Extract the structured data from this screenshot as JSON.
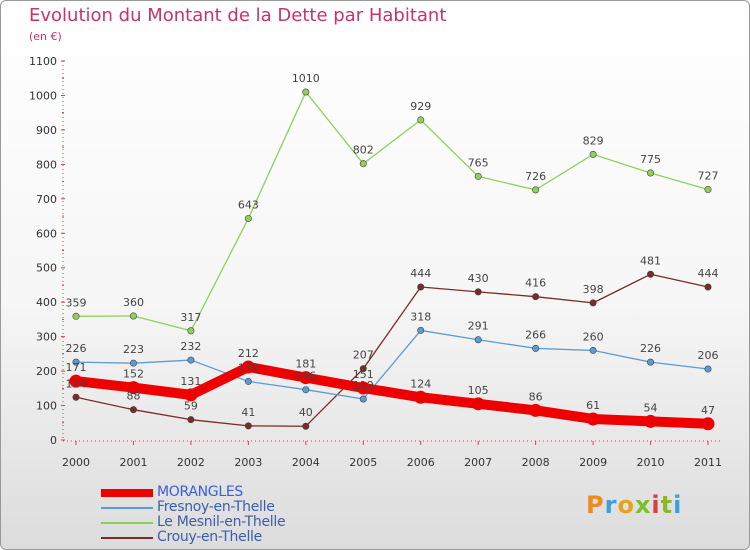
{
  "title": "Evolution du Montant de la Dette par Habitant",
  "subtitle": "(en €)",
  "logo": {
    "text": "Proxiti",
    "colors": [
      "#f08a1e",
      "#3aa0d8",
      "#e6a21b",
      "#7bbf2a",
      "#d8423a",
      "#8ab82a",
      "#3aa0d8"
    ]
  },
  "chart_data": {
    "type": "line",
    "title": "Evolution du Montant de la Dette par Habitant",
    "ylabel": "(en €)",
    "xlabel": "",
    "categories": [
      "2000",
      "2001",
      "2002",
      "2003",
      "2004",
      "2005",
      "2006",
      "2007",
      "2008",
      "2009",
      "2010",
      "2011"
    ],
    "ylim": [
      0,
      1100
    ],
    "yticks": [
      "0",
      "100",
      "200",
      "300",
      "400",
      "500",
      "600",
      "700",
      "800",
      "900",
      "1000",
      "1100"
    ],
    "grid": false,
    "legend_position": "bottom-left",
    "series": [
      {
        "name": "MORANGLES",
        "color": "#ee0000",
        "values": [
          171,
          152,
          131,
          212,
          181,
          151,
          124,
          105,
          86,
          61,
          54,
          47
        ]
      },
      {
        "name": "Fresnoy-en-Thelle",
        "color": "#5b9bd5",
        "values": [
          226,
          223,
          232,
          170,
          146,
          119,
          318,
          291,
          266,
          260,
          226,
          206
        ]
      },
      {
        "name": "Le Mesnil-en-Thelle",
        "color": "#8fd05a",
        "values": [
          359,
          360,
          317,
          643,
          1010,
          802,
          929,
          765,
          726,
          829,
          775,
          727
        ]
      },
      {
        "name": "Crouy-en-Thelle",
        "color": "#7b2a2a",
        "values": [
          124,
          88,
          59,
          41,
          40,
          207,
          444,
          430,
          416,
          398,
          481,
          444
        ]
      }
    ]
  }
}
